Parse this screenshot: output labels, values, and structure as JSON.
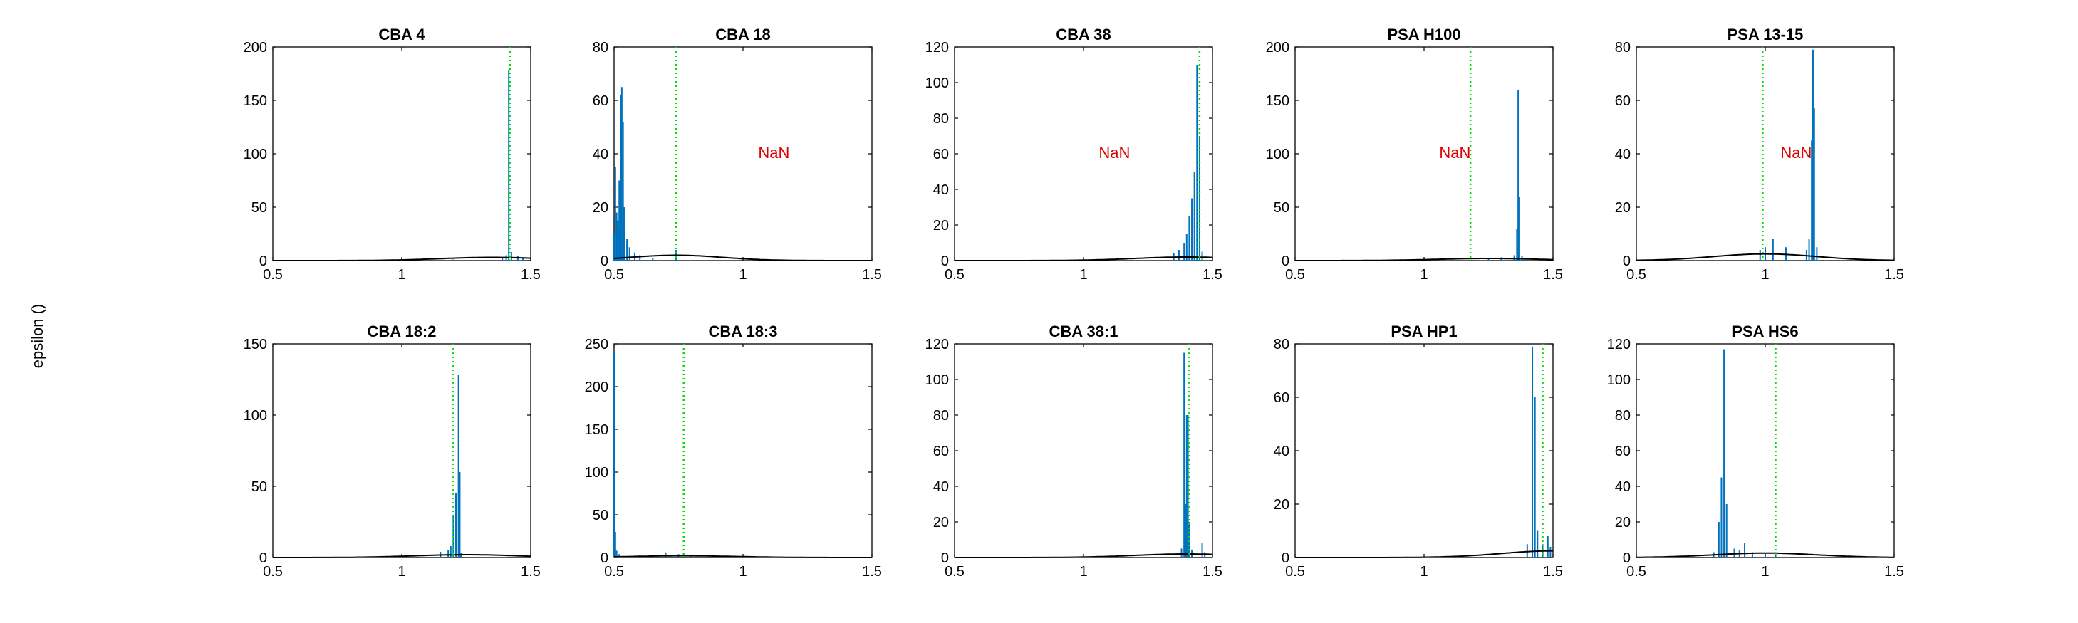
{
  "figure": {
    "ylabel": "epsilon ()"
  },
  "colors": {
    "histogram": "#0072BD",
    "fit_curve": "#000000",
    "marker": "#00E000",
    "nan_text": "#E00000",
    "axes": "#000000"
  },
  "chart_data": [
    {
      "type": "line",
      "title": "CBA 4",
      "xlim": [
        0.5,
        1.5
      ],
      "ylim": [
        0,
        200
      ],
      "xticks": [
        "0.5",
        "1",
        "1.5"
      ],
      "yticks": [
        "0",
        "50",
        "100",
        "150",
        "200"
      ],
      "marker_x": 1.42,
      "annotation": "",
      "spikes": [
        [
          1.2,
          1
        ],
        [
          1.39,
          3
        ],
        [
          1.405,
          5
        ],
        [
          1.415,
          178
        ],
        [
          1.425,
          8
        ],
        [
          1.45,
          4
        ],
        [
          1.47,
          2
        ]
      ],
      "curve": {
        "mu": 1.35,
        "sigma": 0.2,
        "peak": 3
      }
    },
    {
      "type": "line",
      "title": "CBA 18",
      "xlim": [
        0.5,
        1.5
      ],
      "ylim": [
        0,
        80
      ],
      "xticks": [
        "0.5",
        "1",
        "1.5"
      ],
      "yticks": [
        "0",
        "20",
        "40",
        "60",
        "80"
      ],
      "marker_x": 0.74,
      "annotation": "NaN",
      "spikes": [
        [
          0.5,
          10
        ],
        [
          0.505,
          35
        ],
        [
          0.51,
          18
        ],
        [
          0.515,
          15
        ],
        [
          0.52,
          30
        ],
        [
          0.525,
          62
        ],
        [
          0.53,
          65
        ],
        [
          0.535,
          52
        ],
        [
          0.54,
          20
        ],
        [
          0.55,
          8
        ],
        [
          0.56,
          5
        ],
        [
          0.58,
          3
        ],
        [
          0.6,
          2
        ],
        [
          0.65,
          1
        ],
        [
          0.74,
          4
        ]
      ],
      "curve": {
        "mu": 0.74,
        "sigma": 0.18,
        "peak": 2
      }
    },
    {
      "type": "line",
      "title": "CBA 38",
      "xlim": [
        0.5,
        1.5
      ],
      "ylim": [
        0,
        120
      ],
      "xticks": [
        "0.5",
        "1",
        "1.5"
      ],
      "yticks": [
        "0",
        "20",
        "40",
        "60",
        "80",
        "100",
        "120"
      ],
      "marker_x": 1.45,
      "annotation": "NaN",
      "spikes": [
        [
          1.35,
          4
        ],
        [
          1.37,
          6
        ],
        [
          1.39,
          10
        ],
        [
          1.4,
          15
        ],
        [
          1.41,
          25
        ],
        [
          1.42,
          35
        ],
        [
          1.43,
          50
        ],
        [
          1.44,
          110
        ],
        [
          1.45,
          70
        ],
        [
          1.46,
          5
        ]
      ],
      "curve": {
        "mu": 1.4,
        "sigma": 0.2,
        "peak": 2
      }
    },
    {
      "type": "line",
      "title": "PSA H100",
      "xlim": [
        0.5,
        1.5
      ],
      "ylim": [
        0,
        200
      ],
      "xticks": [
        "0.5",
        "1",
        "1.5"
      ],
      "yticks": [
        "0",
        "50",
        "100",
        "150",
        "200"
      ],
      "marker_x": 1.18,
      "annotation": "NaN",
      "spikes": [
        [
          1.25,
          2
        ],
        [
          1.3,
          3
        ],
        [
          1.35,
          5
        ],
        [
          1.36,
          30
        ],
        [
          1.365,
          160
        ],
        [
          1.37,
          60
        ],
        [
          1.38,
          4
        ]
      ],
      "curve": {
        "mu": 1.25,
        "sigma": 0.2,
        "peak": 2
      }
    },
    {
      "type": "line",
      "title": "PSA 13-15",
      "xlim": [
        0.5,
        1.5
      ],
      "ylim": [
        0,
        80
      ],
      "xticks": [
        "0.5",
        "1",
        "1.5"
      ],
      "yticks": [
        "0",
        "20",
        "40",
        "60",
        "80"
      ],
      "marker_x": 0.99,
      "annotation": "NaN",
      "spikes": [
        [
          0.98,
          4
        ],
        [
          1.0,
          5
        ],
        [
          1.03,
          8
        ],
        [
          1.08,
          5
        ],
        [
          1.16,
          4
        ],
        [
          1.17,
          8
        ],
        [
          1.18,
          45
        ],
        [
          1.185,
          79
        ],
        [
          1.19,
          57
        ],
        [
          1.2,
          5
        ]
      ],
      "curve": {
        "mu": 1.0,
        "sigma": 0.2,
        "peak": 2.5
      }
    },
    {
      "type": "line",
      "title": "CBA 18:2",
      "xlim": [
        0.5,
        1.5
      ],
      "ylim": [
        0,
        150
      ],
      "xticks": [
        "0.5",
        "1",
        "1.5"
      ],
      "yticks": [
        "0",
        "50",
        "100",
        "150"
      ],
      "marker_x": 1.2,
      "annotation": "",
      "spikes": [
        [
          1.15,
          4
        ],
        [
          1.18,
          5
        ],
        [
          1.19,
          8
        ],
        [
          1.2,
          30
        ],
        [
          1.21,
          45
        ],
        [
          1.22,
          128
        ],
        [
          1.225,
          60
        ],
        [
          1.23,
          3
        ]
      ],
      "curve": {
        "mu": 1.25,
        "sigma": 0.2,
        "peak": 2
      }
    },
    {
      "type": "line",
      "title": "CBA 18:3",
      "xlim": [
        0.5,
        1.5
      ],
      "ylim": [
        0,
        250
      ],
      "xticks": [
        "0.5",
        "1",
        "1.5"
      ],
      "yticks": [
        "0",
        "50",
        "100",
        "150",
        "200",
        "250"
      ],
      "marker_x": 0.77,
      "annotation": "",
      "spikes": [
        [
          0.5,
          240
        ],
        [
          0.505,
          30
        ],
        [
          0.51,
          8
        ],
        [
          0.52,
          4
        ],
        [
          0.6,
          3
        ],
        [
          0.7,
          6
        ],
        [
          0.75,
          4
        ],
        [
          0.8,
          2
        ]
      ],
      "curve": {
        "mu": 0.77,
        "sigma": 0.2,
        "peak": 2
      }
    },
    {
      "type": "line",
      "title": "CBA 38:1",
      "xlim": [
        0.5,
        1.5
      ],
      "ylim": [
        0,
        120
      ],
      "xticks": [
        "0.5",
        "1",
        "1.5"
      ],
      "yticks": [
        "0",
        "20",
        "40",
        "60",
        "80",
        "100",
        "120"
      ],
      "marker_x": 1.41,
      "annotation": "",
      "spikes": [
        [
          1.38,
          5
        ],
        [
          1.39,
          115
        ],
        [
          1.395,
          30
        ],
        [
          1.4,
          80
        ],
        [
          1.405,
          80
        ],
        [
          1.41,
          20
        ],
        [
          1.42,
          4
        ],
        [
          1.46,
          8
        ],
        [
          1.47,
          3
        ]
      ],
      "curve": {
        "mu": 1.4,
        "sigma": 0.2,
        "peak": 2
      }
    },
    {
      "type": "line",
      "title": "PSA HP1",
      "xlim": [
        0.5,
        1.5
      ],
      "ylim": [
        0,
        80
      ],
      "xticks": [
        "0.5",
        "1",
        "1.5"
      ],
      "yticks": [
        "0",
        "20",
        "40",
        "60",
        "80"
      ],
      "marker_x": 1.46,
      "annotation": "",
      "spikes": [
        [
          1.4,
          5
        ],
        [
          1.42,
          79
        ],
        [
          1.43,
          60
        ],
        [
          1.44,
          10
        ],
        [
          1.46,
          5
        ],
        [
          1.48,
          8
        ],
        [
          1.49,
          4
        ]
      ],
      "curve": {
        "mu": 1.5,
        "sigma": 0.2,
        "peak": 2.5
      }
    },
    {
      "type": "line",
      "title": "PSA HS6",
      "xlim": [
        0.5,
        1.5
      ],
      "ylim": [
        0,
        120
      ],
      "xticks": [
        "0.5",
        "1",
        "1.5"
      ],
      "yticks": [
        "0",
        "20",
        "40",
        "60",
        "80",
        "100",
        "120"
      ],
      "marker_x": 1.04,
      "annotation": "",
      "spikes": [
        [
          0.8,
          3
        ],
        [
          0.82,
          20
        ],
        [
          0.83,
          45
        ],
        [
          0.84,
          117
        ],
        [
          0.85,
          30
        ],
        [
          0.88,
          5
        ],
        [
          0.9,
          4
        ],
        [
          0.92,
          8
        ],
        [
          0.95,
          3
        ],
        [
          1.0,
          2
        ],
        [
          1.04,
          3
        ]
      ],
      "curve": {
        "mu": 1.0,
        "sigma": 0.2,
        "peak": 2.5
      }
    }
  ]
}
